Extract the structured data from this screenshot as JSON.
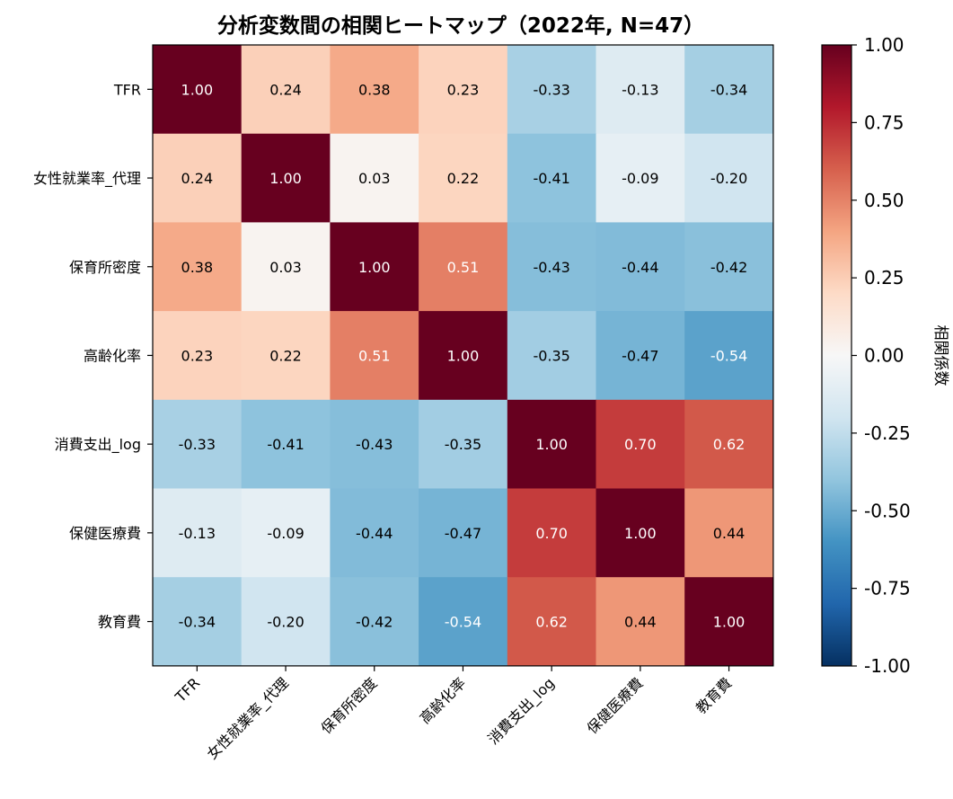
{
  "chart_data": {
    "type": "heatmap",
    "title": "分析変数間の相関ヒートマップ（2022年, N=47）",
    "rows": [
      "TFR",
      "女性就業率_代理",
      "保育所密度",
      "高齢化率",
      "消費支出_log",
      "保健医療費",
      "教育費"
    ],
    "columns": [
      "TFR",
      "女性就業率_代理",
      "保育所密度",
      "高齢化率",
      "消費支出_log",
      "保健医療費",
      "教育費"
    ],
    "values": [
      [
        1.0,
        0.24,
        0.38,
        0.23,
        -0.33,
        -0.13,
        -0.34
      ],
      [
        0.24,
        1.0,
        0.03,
        0.22,
        -0.41,
        -0.09,
        -0.2
      ],
      [
        0.38,
        0.03,
        1.0,
        0.51,
        -0.43,
        -0.44,
        -0.42
      ],
      [
        0.23,
        0.22,
        0.51,
        1.0,
        -0.35,
        -0.47,
        -0.54
      ],
      [
        -0.33,
        -0.41,
        -0.43,
        -0.35,
        1.0,
        0.7,
        0.62
      ],
      [
        -0.13,
        -0.09,
        -0.44,
        -0.47,
        0.7,
        1.0,
        0.44
      ],
      [
        -0.34,
        -0.2,
        -0.42,
        -0.54,
        0.62,
        0.44,
        1.0
      ]
    ],
    "value_format": "2 decimals",
    "colorscale": "RdBu_r",
    "vmin": -1.0,
    "vmax": 1.0,
    "colorbar": {
      "label": "相関係数",
      "ticks": [
        1.0,
        0.75,
        0.5,
        0.25,
        0.0,
        -0.25,
        -0.5,
        -0.75,
        -1.0
      ],
      "tick_labels": [
        "1.00",
        "0.75",
        "0.50",
        "0.25",
        "0.00",
        "-0.25",
        "-0.50",
        "-0.75",
        "-1.00"
      ]
    },
    "colors": {
      "stops": [
        "#053061",
        "#2166ac",
        "#4393c3",
        "#92c5de",
        "#d1e5f0",
        "#f7f7f7",
        "#fddbc7",
        "#f4a582",
        "#d6604d",
        "#b2182b",
        "#67001f"
      ],
      "text_dark": "#000000",
      "text_light": "#ffffff"
    }
  }
}
